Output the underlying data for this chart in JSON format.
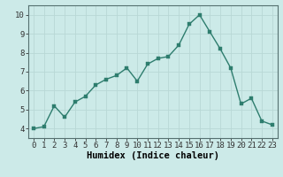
{
  "x": [
    0,
    1,
    2,
    3,
    4,
    5,
    6,
    7,
    8,
    9,
    10,
    11,
    12,
    13,
    14,
    15,
    16,
    17,
    18,
    19,
    20,
    21,
    22,
    23
  ],
  "y": [
    4.0,
    4.1,
    5.2,
    4.6,
    5.4,
    5.7,
    6.3,
    6.6,
    6.8,
    7.2,
    6.5,
    7.4,
    7.7,
    7.8,
    8.4,
    9.5,
    10.0,
    9.1,
    8.2,
    7.2,
    5.3,
    5.6,
    4.4,
    4.2
  ],
  "xlabel": "Humidex (Indice chaleur)",
  "ylim": [
    3.5,
    10.5
  ],
  "xlim": [
    -0.5,
    23.5
  ],
  "yticks": [
    4,
    5,
    6,
    7,
    8,
    9,
    10
  ],
  "xtick_labels": [
    "0",
    "1",
    "2",
    "3",
    "4",
    "5",
    "6",
    "7",
    "8",
    "9",
    "10",
    "11",
    "12",
    "13",
    "14",
    "15",
    "16",
    "17",
    "18",
    "19",
    "20",
    "21",
    "22",
    "23"
  ],
  "line_color": "#2e7d6e",
  "marker_color": "#2e7d6e",
  "bg_color": "#cceae8",
  "grid_color": "#b8d8d5",
  "axis_bg": "#cceae8",
  "xlabel_fontsize": 7.5,
  "tick_fontsize": 6.5,
  "linewidth": 1.0,
  "markersize": 2.5
}
